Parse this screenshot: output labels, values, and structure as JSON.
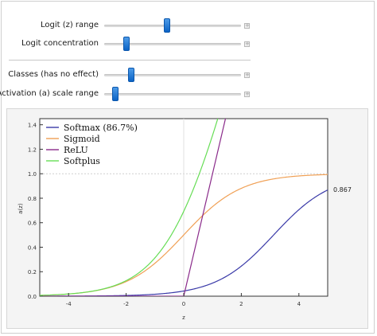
{
  "controls": [
    {
      "label": "Logit (z) range",
      "value": 0.46
    },
    {
      "label": "Logit concentration",
      "value": 0.16
    },
    {
      "label": "Classes (has no effect)",
      "value": 0.2
    },
    {
      "label": "Activation (a) scale range",
      "value": 0.08
    }
  ],
  "plus_glyph": "+",
  "chart_data": {
    "type": "line",
    "xlabel": "z",
    "ylabel": "a(z)",
    "xlim": [
      -5,
      5
    ],
    "ylim": [
      0,
      1.45
    ],
    "x_ticks": [
      -4,
      -2,
      0,
      2,
      4
    ],
    "y_ticks": [
      0.0,
      0.2,
      0.4,
      0.6,
      0.8,
      1.0,
      1.2,
      1.4
    ],
    "x_tick_labels": [
      "-4",
      "-2",
      "0",
      "2",
      "4"
    ],
    "y_tick_labels": [
      "0.0",
      "0.2",
      "0.4",
      "0.6",
      "0.8",
      "1.0",
      "1.2",
      "1.4"
    ],
    "reference_line_y": 1.0,
    "end_label": "0.867",
    "series": [
      {
        "name": "Softmax (86.7%)",
        "color": "#3a3aa8",
        "function": "softmax"
      },
      {
        "name": "Sigmoid",
        "color": "#f0a055",
        "function": "sigmoid"
      },
      {
        "name": "ReLU",
        "color": "#8a2a8a",
        "function": "relu"
      },
      {
        "name": "Softplus",
        "color": "#66dd55",
        "function": "softplus"
      }
    ]
  }
}
